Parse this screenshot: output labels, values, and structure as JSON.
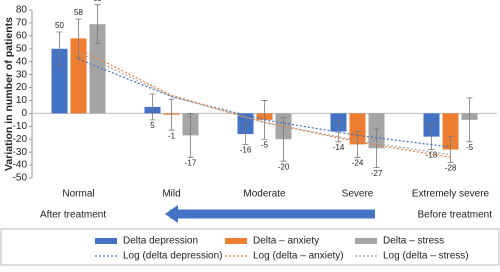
{
  "chart_data": {
    "type": "bar",
    "y_label": "Variation in number of patients",
    "categories": [
      "Normal",
      "Mild",
      "Moderate",
      "Severe",
      "Extremely severe"
    ],
    "series": [
      {
        "name": "Delta depression",
        "color": "#4472c4",
        "values": [
          50,
          5,
          -16,
          -14,
          -18
        ],
        "errors": [
          13,
          10,
          8,
          8,
          10
        ]
      },
      {
        "name": "Delta – anxiety",
        "color": "#ed7d31",
        "values": [
          58,
          -1,
          -5,
          -24,
          -28
        ],
        "errors": [
          15,
          12,
          15,
          10,
          10
        ]
      },
      {
        "name": "Delta – stress",
        "color": "#a5a5a5",
        "values": [
          69,
          -17,
          -20,
          -27,
          -5
        ],
        "errors": [
          15,
          17,
          17,
          15,
          17
        ]
      }
    ],
    "trendlines": [
      {
        "name": "Log (delta depression)",
        "color": "#4472c4",
        "values": [
          42,
          13,
          -5,
          -17,
          -26
        ]
      },
      {
        "name": "Log (delta – anxiety)",
        "color": "#ed7d31",
        "values": [
          50,
          14,
          -7,
          -22,
          -34
        ]
      },
      {
        "name": "Log (delta – stress)",
        "color": "#a5a5a5",
        "values": [
          47,
          13,
          -7,
          -21,
          -32
        ]
      }
    ],
    "annotations": [
      "After treatment",
      "Before treatment"
    ],
    "ylim": [
      -50,
      80
    ],
    "yticks": [
      -50,
      -40,
      -30,
      -20,
      -10,
      0,
      10,
      20,
      30,
      40,
      50,
      60,
      70,
      80
    ]
  }
}
